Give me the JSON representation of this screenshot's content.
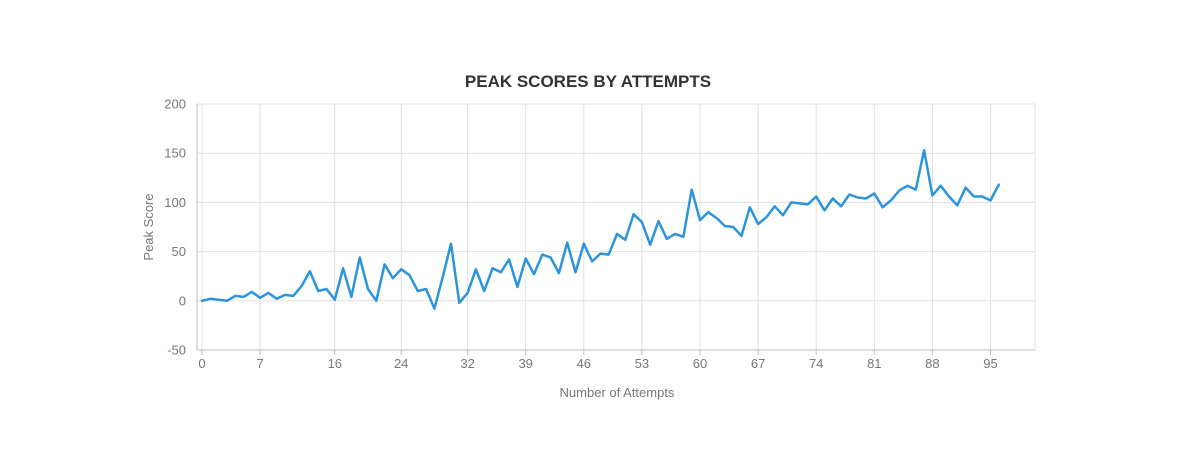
{
  "chart_data": {
    "type": "line",
    "title": "PEAK SCORES BY ATTEMPTS",
    "xlabel": "Number of Attempts",
    "ylabel": "Peak Score",
    "xlim": [
      0,
      100
    ],
    "ylim": [
      -50,
      200
    ],
    "x_ticks": [
      0,
      7,
      16,
      24,
      32,
      39,
      46,
      53,
      60,
      67,
      74,
      81,
      88,
      95
    ],
    "y_ticks": [
      -50,
      0,
      50,
      100,
      150,
      200
    ],
    "grid": true,
    "line_color": "#2d94db",
    "series": [
      {
        "values": [
          0,
          2,
          1,
          0,
          5,
          4,
          9,
          3,
          8,
          2,
          6,
          5,
          15,
          30,
          10,
          12,
          1,
          33,
          4,
          44,
          12,
          0,
          37,
          23,
          32,
          26,
          10,
          12,
          -8,
          24,
          58,
          -2,
          8,
          32,
          10,
          33,
          29,
          42,
          14,
          43,
          27,
          47,
          44,
          28,
          59,
          29,
          58,
          40,
          48,
          47,
          68,
          62,
          88,
          80,
          57,
          81,
          63,
          68,
          65,
          113,
          82,
          90,
          84,
          76,
          75,
          66,
          95,
          78,
          85,
          96,
          87,
          100,
          99,
          98,
          106,
          92,
          104,
          96,
          108,
          105,
          104,
          109,
          95,
          102,
          112,
          117,
          113,
          153,
          107,
          117,
          106,
          97,
          115,
          106,
          106,
          102,
          118
        ]
      }
    ]
  }
}
